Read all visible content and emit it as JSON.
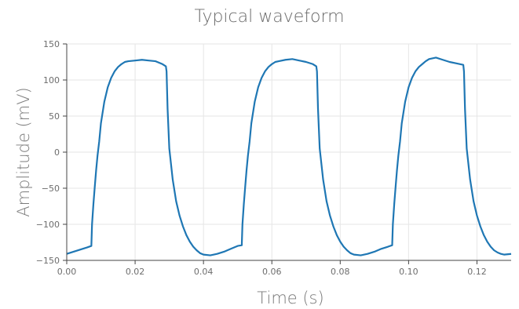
{
  "chart_data": {
    "type": "line",
    "title": "Typical waveform",
    "xlabel": "Time (s)",
    "ylabel": "Amplitude (mV)",
    "xlim": [
      0.0,
      0.13
    ],
    "ylim": [
      -150,
      150
    ],
    "x_ticks": [
      0.0,
      0.02,
      0.04,
      0.06,
      0.08,
      0.1,
      0.12
    ],
    "x_tick_labels": [
      "0.00",
      "0.02",
      "0.04",
      "0.06",
      "0.08",
      "0.10",
      "0.12"
    ],
    "y_ticks": [
      150,
      100,
      50,
      0,
      -50,
      -100,
      -150
    ],
    "y_tick_labels": [
      "150",
      "100",
      "50",
      "0",
      "−50",
      "−100",
      "−150"
    ],
    "grid": true,
    "legend": "none",
    "series": [
      {
        "color": "#1f77b4",
        "x": [
          0.0,
          0.002,
          0.004,
          0.006,
          0.0072,
          0.0074,
          0.0078,
          0.0082,
          0.0086,
          0.009,
          0.0095,
          0.01,
          0.011,
          0.012,
          0.013,
          0.014,
          0.015,
          0.016,
          0.017,
          0.018,
          0.02,
          0.022,
          0.024,
          0.026,
          0.028,
          0.029,
          0.0292,
          0.0295,
          0.03,
          0.031,
          0.032,
          0.033,
          0.034,
          0.035,
          0.036,
          0.037,
          0.038,
          0.039,
          0.04,
          0.042,
          0.044,
          0.046,
          0.048,
          0.05,
          0.0512,
          0.0514,
          0.0518,
          0.0522,
          0.0526,
          0.053,
          0.0535,
          0.054,
          0.055,
          0.056,
          0.057,
          0.058,
          0.059,
          0.06,
          0.061,
          0.062,
          0.064,
          0.066,
          0.068,
          0.07,
          0.072,
          0.073,
          0.0732,
          0.0735,
          0.074,
          0.075,
          0.076,
          0.077,
          0.078,
          0.079,
          0.08,
          0.081,
          0.082,
          0.083,
          0.084,
          0.086,
          0.088,
          0.09,
          0.092,
          0.094,
          0.0952,
          0.0954,
          0.0958,
          0.0962,
          0.0966,
          0.097,
          0.0975,
          0.098,
          0.099,
          0.1,
          0.101,
          0.102,
          0.103,
          0.104,
          0.105,
          0.106,
          0.108,
          0.11,
          0.112,
          0.114,
          0.116,
          0.1162,
          0.1165,
          0.117,
          0.118,
          0.119,
          0.12,
          0.121,
          0.122,
          0.123,
          0.124,
          0.125,
          0.126,
          0.127,
          0.128,
          0.13
        ],
        "y": [
          -141,
          -138,
          -135,
          -132,
          -130,
          -100,
          -72,
          -48,
          -25,
          -5,
          15,
          40,
          70,
          90,
          103,
          112,
          118,
          122,
          125,
          126,
          127,
          128,
          127,
          126,
          122,
          119,
          112,
          60,
          5,
          -38,
          -68,
          -88,
          -103,
          -115,
          -124,
          -131,
          -136,
          -140,
          -142,
          -143,
          -141,
          -138,
          -134,
          -130,
          -129,
          -100,
          -72,
          -48,
          -25,
          -5,
          15,
          40,
          70,
          90,
          103,
          112,
          118,
          122,
          125,
          126,
          128,
          129,
          127,
          125,
          122,
          119,
          112,
          60,
          5,
          -38,
          -68,
          -88,
          -103,
          -115,
          -124,
          -131,
          -136,
          -140,
          -142,
          -143,
          -141,
          -138,
          -134,
          -131,
          -129,
          -100,
          -72,
          -48,
          -25,
          -5,
          15,
          40,
          70,
          90,
          103,
          112,
          118,
          122,
          126,
          129,
          131,
          128,
          125,
          123,
          121,
          112,
          60,
          5,
          -38,
          -68,
          -88,
          -103,
          -115,
          -124,
          -131,
          -136,
          -139,
          -141,
          -142,
          -141
        ]
      }
    ]
  }
}
